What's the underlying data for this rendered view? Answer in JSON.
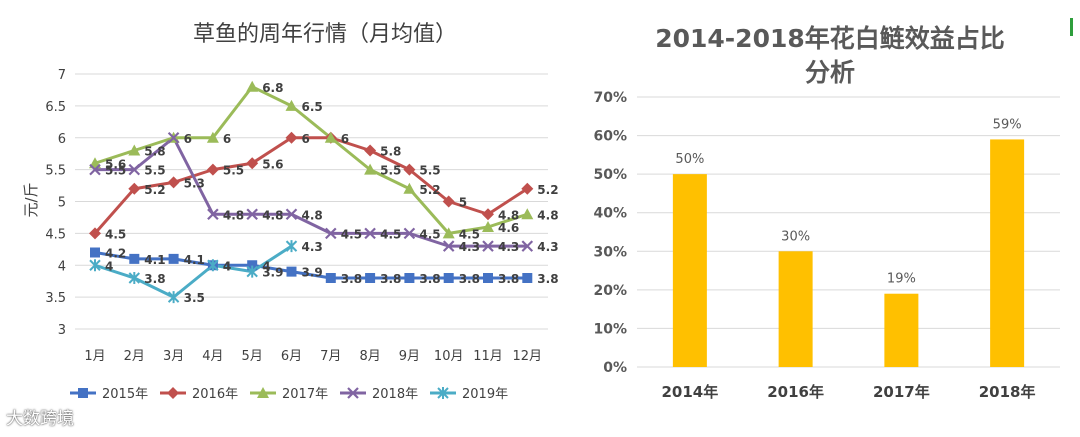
{
  "watermark": "大数跨境",
  "chart_data": [
    {
      "type": "line",
      "title": "草鱼的周年行情（月均值）",
      "ylabel": "元/斤",
      "xlabel": "",
      "categories": [
        "1月",
        "2月",
        "3月",
        "4月",
        "5月",
        "6月",
        "7月",
        "8月",
        "9月",
        "10月",
        "11月",
        "12月"
      ],
      "ylim": [
        3,
        7
      ],
      "yticks": [
        "3",
        "3.5",
        "4",
        "4.5",
        "5",
        "5.5",
        "6",
        "6.5",
        "7"
      ],
      "grid": true,
      "legend_position": "bottom",
      "series": [
        {
          "name": "2015年",
          "color": "#4472c4",
          "marker": "square",
          "values": [
            4.2,
            4.1,
            4.1,
            4.0,
            4.0,
            3.9,
            3.8,
            3.8,
            3.8,
            3.8,
            3.8,
            3.8
          ],
          "labels": [
            "4.2",
            "4.1",
            "4.1",
            "4",
            "4",
            "3.9",
            "3.8",
            "3.8",
            "3.8",
            "3.8",
            "3.8",
            "3.8"
          ]
        },
        {
          "name": "2016年",
          "color": "#c0504d",
          "marker": "diamond",
          "values": [
            4.5,
            5.2,
            5.3,
            5.5,
            5.6,
            6.0,
            6.0,
            5.8,
            5.5,
            5.0,
            4.8,
            5.2
          ],
          "labels": [
            "4.5",
            "5.2",
            "5.3",
            "5.5",
            "5.6",
            "6",
            "6",
            "5.8",
            "5.5",
            "5",
            "4.8",
            "5.2"
          ]
        },
        {
          "name": "2017年",
          "color": "#9bbb59",
          "marker": "triangle",
          "values": [
            5.6,
            5.8,
            6.0,
            6.0,
            6.8,
            6.5,
            6.0,
            5.5,
            5.2,
            4.5,
            4.6,
            4.8
          ],
          "labels": [
            "5.6",
            "5.8",
            "",
            "6",
            "6.8",
            "6.5",
            "",
            "5.5",
            "5.2",
            "4.5",
            "4.6",
            "4.8"
          ]
        },
        {
          "name": "2018年",
          "color": "#8064a2",
          "marker": "x",
          "values": [
            5.5,
            5.5,
            6.0,
            4.8,
            4.8,
            4.8,
            4.5,
            4.5,
            4.5,
            4.3,
            4.3,
            4.3
          ],
          "labels": [
            "5.5",
            "5.5",
            "6",
            "4.8",
            "4.8",
            "4.8",
            "4.5",
            "4.5",
            "4.5",
            "4.3",
            "4.3",
            "4.3"
          ]
        },
        {
          "name": "2019年",
          "color": "#4bacc6",
          "marker": "star",
          "values": [
            4.0,
            3.8,
            3.5,
            4.0,
            3.9,
            4.3,
            null,
            null,
            null,
            null,
            null,
            null
          ],
          "labels": [
            "4",
            "3.8",
            "3.5",
            "4",
            "3.9",
            "4.3",
            "",
            "",
            "",
            "",
            "",
            ""
          ]
        }
      ]
    },
    {
      "type": "bar",
      "title": "2014-2018年花白鲢效益占比分析",
      "title_lines": [
        "2014-2018年花白鲢效益占比",
        "分析"
      ],
      "categories": [
        "2014年",
        "2016年",
        "2017年",
        "2018年"
      ],
      "values": [
        50,
        30,
        19,
        59
      ],
      "value_labels": [
        "50%",
        "30%",
        "19%",
        "59%"
      ],
      "ylim": [
        0,
        70
      ],
      "yticks": [
        "0%",
        "10%",
        "20%",
        "30%",
        "40%",
        "50%",
        "60%",
        "70%"
      ],
      "bar_color": "#ffc000",
      "grid": true,
      "xlabel": "",
      "ylabel": ""
    }
  ]
}
